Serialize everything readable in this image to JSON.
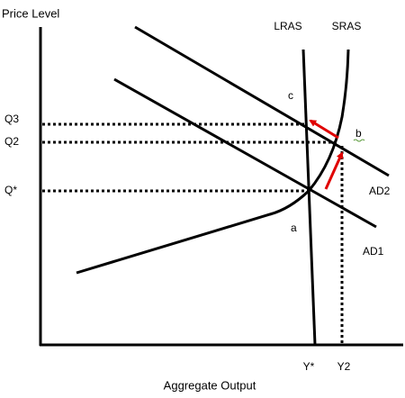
{
  "axes": {
    "y_label": "Price Level",
    "x_label": "Aggregate Output"
  },
  "curves": {
    "lras": "LRAS",
    "sras": "SRAS",
    "ad1": "AD1",
    "ad2": "AD2"
  },
  "price_levels": [
    "Q3",
    "Q2",
    "Q*"
  ],
  "outputs": [
    "Y*",
    "Y2"
  ],
  "points": [
    "c",
    "b",
    "a"
  ]
}
